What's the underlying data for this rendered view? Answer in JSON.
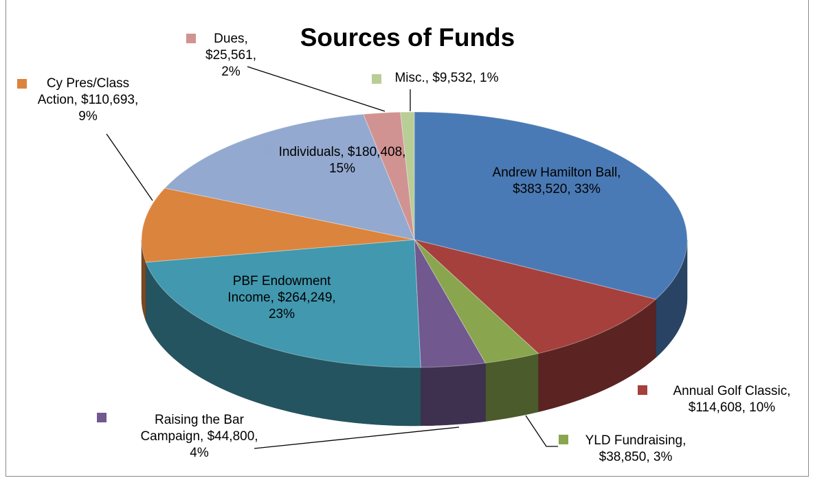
{
  "chart_data": {
    "type": "pie",
    "title": "Sources of Funds",
    "categories": [
      "Andrew Hamilton Ball",
      "Annual Golf Classic",
      "YLD Fundraising",
      "Raising the Bar Campaign",
      "PBF Endowment Income",
      "Cy Pres/Class Action",
      "Individuals",
      "Dues",
      "Misc."
    ],
    "values": [
      383520,
      114608,
      38850,
      44800,
      264249,
      110693,
      180408,
      25561,
      9532
    ],
    "value_labels": [
      "Andrew Hamilton Ball, $383,520, 33%",
      "Annual Golf Classic, $114,608, 10%",
      "YLD Fundraising, $38,850, 3%",
      "Raising the Bar Campaign, $44,800, 4%",
      "PBF Endowment Income, $264,249, 23%",
      "Cy Pres/Class Action, $110,693, 9%",
      "Individuals, $180,408, 15%",
      "Dues, $25,561, 2%",
      "Misc., $9,532, 1%"
    ],
    "colors": [
      "#4a7ab5",
      "#a5403d",
      "#89a54e",
      "#71588f",
      "#4198af",
      "#db843d",
      "#93a9cf",
      "#d19392",
      "#b9cd96"
    ]
  }
}
